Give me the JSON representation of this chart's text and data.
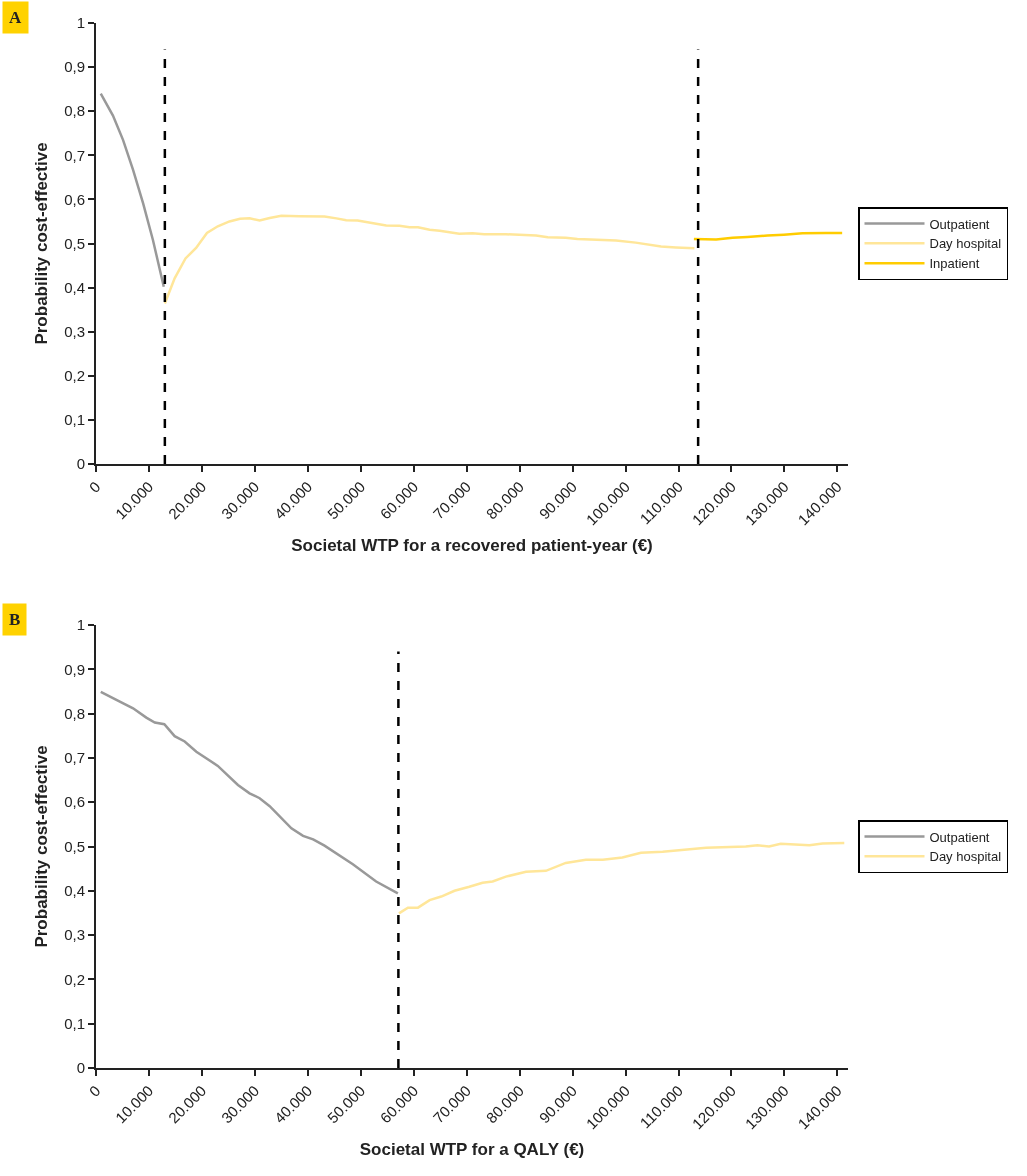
{
  "chart_data": [
    {
      "type": "line",
      "annotations": [
        "A"
      ],
      "xlabel": "Societal WTP for a recovered patient-year (€)",
      "ylabel": "Probability cost-effective",
      "xlim": [
        0,
        142000
      ],
      "xticks": [
        0,
        {
          "value": 10000,
          "label": "10.000"
        },
        {
          "value": 20000,
          "label": "20.000"
        },
        {
          "value": 30000,
          "label": "30.000"
        },
        {
          "value": 40000,
          "label": "40.000"
        },
        {
          "value": 50000,
          "label": "50.000"
        },
        {
          "value": 60000,
          "label": "60.000"
        },
        {
          "value": 70000,
          "label": "70.000"
        },
        {
          "value": 80000,
          "label": "80.000"
        },
        {
          "value": 90000,
          "label": "90.000"
        },
        {
          "value": 100000,
          "label": "100.000"
        },
        {
          "value": 110000,
          "label": "110.000"
        },
        {
          "value": 120000,
          "label": "120.000"
        },
        {
          "value": 130000,
          "label": "130.000"
        },
        {
          "value": 140000,
          "label": "140.000"
        }
      ],
      "ylim": [
        0,
        1
      ],
      "yticks": [
        0,
        {
          "value": 0.1,
          "label": "0,1"
        },
        {
          "value": 0.2,
          "label": "0,2"
        },
        {
          "value": 0.3,
          "label": "0,3"
        },
        {
          "value": 0.4,
          "label": "0,4"
        },
        {
          "value": 0.5,
          "label": "0,5"
        },
        {
          "value": 0.6,
          "label": "0,6"
        },
        {
          "value": 0.7,
          "label": "0,7"
        },
        {
          "value": 0.8,
          "label": "0,8"
        },
        {
          "value": 0.9,
          "label": "0,9"
        },
        1
      ],
      "legend": "right",
      "marker": "none",
      "line_style": "solid",
      "ref_lines": [
        {
          "axis": "x",
          "value": 13000,
          "color": "#000000",
          "line_style": "dashed"
        },
        {
          "axis": "x",
          "value": 113700,
          "color": "#000000",
          "line_style": "dashed"
        }
      ],
      "series": [
        {
          "name": "Outpatient",
          "color": "#999999",
          "x": [
            900,
            3200,
            5100,
            7000,
            8900,
            10750,
            12800
          ],
          "values": [
            0.84,
            0.79,
            0.735,
            0.667,
            0.591,
            0.508,
            0.402
          ]
        },
        {
          "name": "Day hospital",
          "color": "#ffe699",
          "x": [
            13000,
            14850,
            16900,
            18900,
            20950,
            23000,
            25200,
            27200,
            29000,
            30900,
            32800,
            35000,
            38400,
            43150,
            45400,
            47250,
            49400,
            52900,
            54800,
            57300,
            59200,
            60800,
            63000,
            64900,
            68600,
            71100,
            73300,
            77400,
            83100,
            85300,
            88700,
            90900,
            98200,
            101900,
            106700,
            109500,
            113000
          ],
          "values": [
            0.364,
            0.421,
            0.466,
            0.49,
            0.524,
            0.539,
            0.55,
            0.556,
            0.557,
            0.552,
            0.558,
            0.563,
            0.562,
            0.561,
            0.557,
            0.553,
            0.552,
            0.545,
            0.541,
            0.54,
            0.537,
            0.537,
            0.531,
            0.529,
            0.522,
            0.523,
            0.521,
            0.521,
            0.518,
            0.514,
            0.513,
            0.51,
            0.507,
            0.502,
            0.493,
            0.491,
            0.489
          ]
        },
        {
          "name": "Inpatient",
          "color": "#ffcc00",
          "x": [
            112900,
            117100,
            120200,
            123000,
            126800,
            129900,
            133400,
            137800,
            140900
          ],
          "values": [
            0.51,
            0.509,
            0.513,
            0.515,
            0.518,
            0.52,
            0.523,
            0.524,
            0.524
          ]
        }
      ]
    },
    {
      "type": "line",
      "annotations": [
        "B"
      ],
      "xlabel": "Societal WTP for a QALY (€)",
      "ylabel": "Probability cost-effective",
      "xlim": [
        0,
        142000
      ],
      "xticks": [
        0,
        {
          "value": 10000,
          "label": "10.000"
        },
        {
          "value": 20000,
          "label": "20.000"
        },
        {
          "value": 30000,
          "label": "30.000"
        },
        {
          "value": 40000,
          "label": "40.000"
        },
        {
          "value": 50000,
          "label": "50.000"
        },
        {
          "value": 60000,
          "label": "60.000"
        },
        {
          "value": 70000,
          "label": "70.000"
        },
        {
          "value": 80000,
          "label": "80.000"
        },
        {
          "value": 90000,
          "label": "90.000"
        },
        {
          "value": 100000,
          "label": "100.000"
        },
        {
          "value": 110000,
          "label": "110.000"
        },
        {
          "value": 120000,
          "label": "120.000"
        },
        {
          "value": 130000,
          "label": "130.000"
        },
        {
          "value": 140000,
          "label": "140.000"
        }
      ],
      "ylim": [
        0,
        1
      ],
      "yticks": [
        0,
        {
          "value": 0.1,
          "label": "0,1"
        },
        {
          "value": 0.2,
          "label": "0,2"
        },
        {
          "value": 0.3,
          "label": "0,3"
        },
        {
          "value": 0.4,
          "label": "0,4"
        },
        {
          "value": 0.5,
          "label": "0,5"
        },
        {
          "value": 0.6,
          "label": "0,6"
        },
        {
          "value": 0.7,
          "label": "0,7"
        },
        {
          "value": 0.8,
          "label": "0,8"
        },
        {
          "value": 0.9,
          "label": "0,9"
        },
        1
      ],
      "legend": "right",
      "marker": "none",
      "line_style": "solid",
      "ref_lines": [
        {
          "axis": "x",
          "value": 57100,
          "color": "#000000",
          "line_style": "dashed"
        }
      ],
      "series": [
        {
          "name": "Outpatient",
          "color": "#999999",
          "x": [
            900,
            4500,
            7000,
            9500,
            11100,
            12900,
            14850,
            16750,
            18950,
            23000,
            26800,
            29000,
            30900,
            32800,
            36900,
            39100,
            41000,
            43150,
            48500,
            52900,
            57000
          ],
          "values": [
            0.849,
            0.827,
            0.812,
            0.791,
            0.78,
            0.776,
            0.749,
            0.737,
            0.714,
            0.682,
            0.639,
            0.62,
            0.609,
            0.591,
            0.541,
            0.524,
            0.516,
            0.502,
            0.46,
            0.421,
            0.394
          ]
        },
        {
          "name": "Day hospital",
          "color": "#ffe699",
          "x": [
            57200,
            58900,
            60800,
            63000,
            65200,
            67700,
            70500,
            73000,
            74900,
            77400,
            81200,
            84950,
            88700,
            92500,
            95700,
            99400,
            102900,
            107000,
            115200,
            122700,
            124900,
            127100,
            129300,
            134700,
            137200,
            141300
          ],
          "values": [
            0.349,
            0.362,
            0.362,
            0.379,
            0.387,
            0.4,
            0.409,
            0.418,
            0.421,
            0.432,
            0.443,
            0.445,
            0.463,
            0.47,
            0.47,
            0.475,
            0.486,
            0.488,
            0.497,
            0.5,
            0.503,
            0.5,
            0.506,
            0.503,
            0.507,
            0.508
          ]
        }
      ]
    }
  ]
}
